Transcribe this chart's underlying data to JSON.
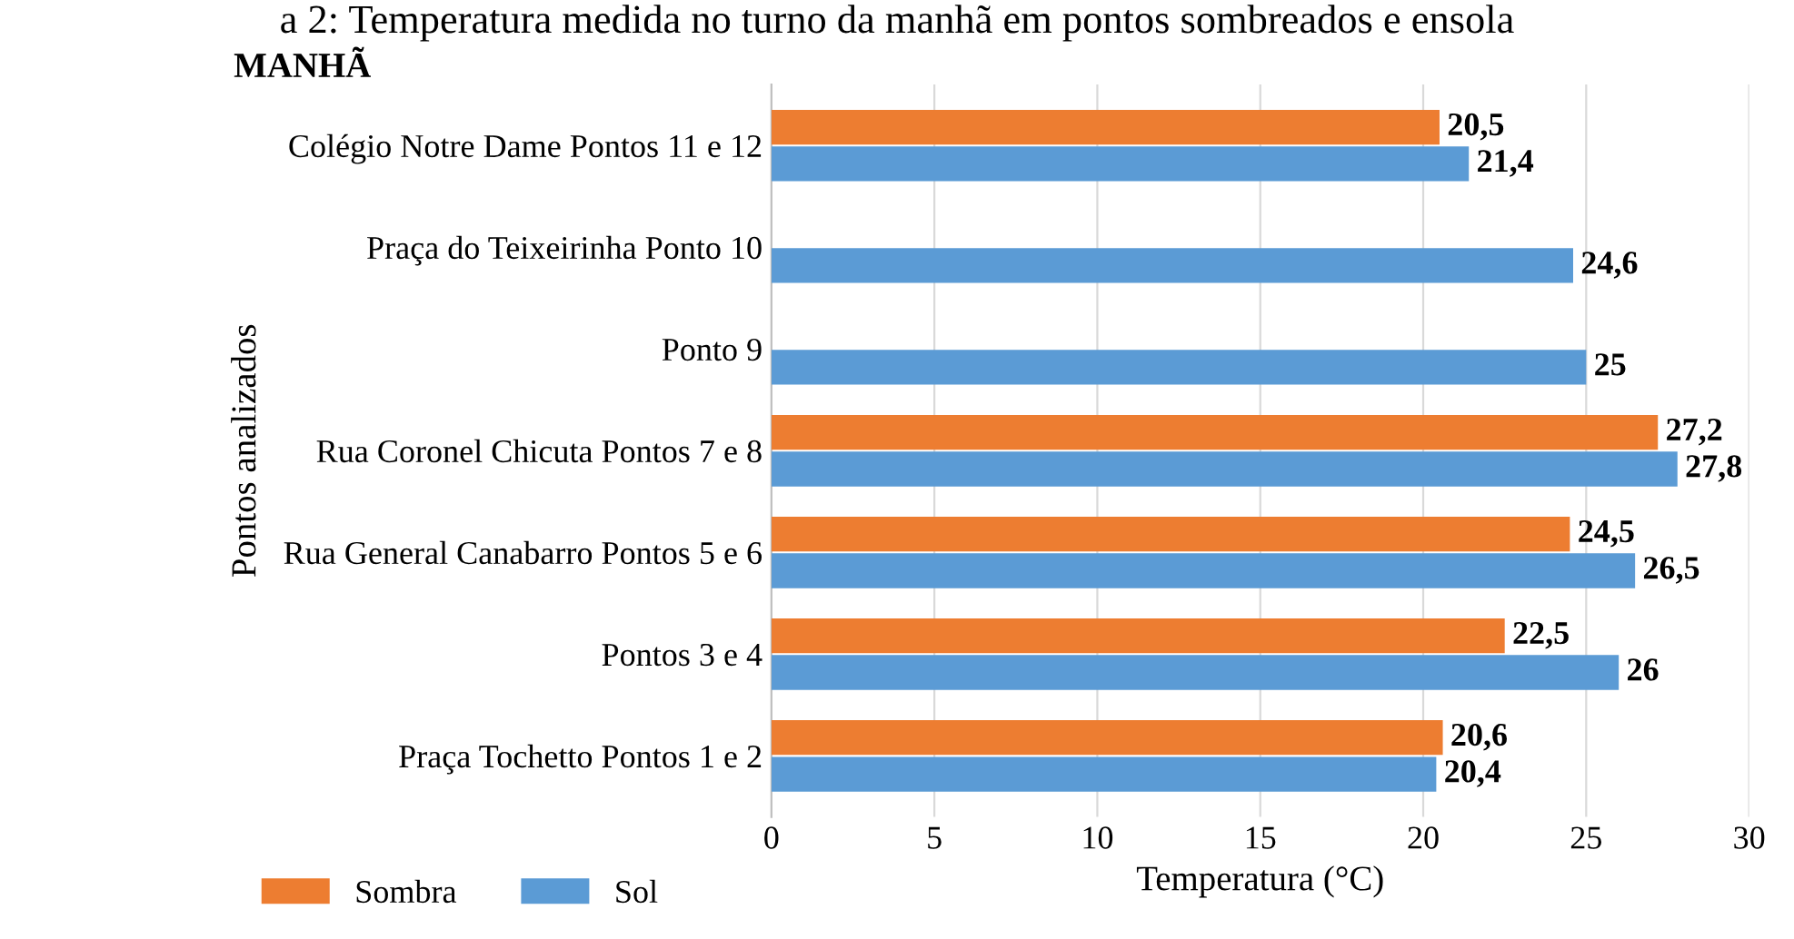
{
  "chart_data": {
    "type": "bar",
    "orientation": "horizontal",
    "title": "a 2: Temperatura medida no turno da manhã em pontos sombreados e ensola",
    "subtitle": "MANHÃ",
    "xlabel": "Temperatura (°C)",
    "ylabel": "Pontos analizados",
    "categories": [
      "Colégio Notre Dame Pontos 11 e 12",
      "Praça do Teixeirinha Ponto 10",
      "Ponto 9",
      "Rua Coronel Chicuta Pontos 7 e 8",
      "Rua General Canabarro Pontos 5 e 6",
      "Pontos 3 e 4",
      "Praça Tochetto Pontos 1 e 2"
    ],
    "series": [
      {
        "name": "Sombra",
        "color": "#ed7d31",
        "values": [
          20.5,
          null,
          null,
          27.2,
          24.5,
          22.5,
          20.6
        ],
        "value_labels": [
          "20,5",
          null,
          null,
          "27,2",
          "24,5",
          "22,5",
          "20,6"
        ]
      },
      {
        "name": "Sol",
        "color": "#5b9bd5",
        "values": [
          21.4,
          24.6,
          25,
          27.8,
          26.5,
          26,
          20.4
        ],
        "value_labels": [
          "21,4",
          "24,6",
          "25",
          "27,8",
          "26,5",
          "26",
          "20,4"
        ]
      }
    ],
    "xlim": [
      0,
      30
    ],
    "xticks": [
      0,
      5,
      10,
      15,
      20,
      25,
      30
    ],
    "grid": "x",
    "legend": "bottom"
  }
}
